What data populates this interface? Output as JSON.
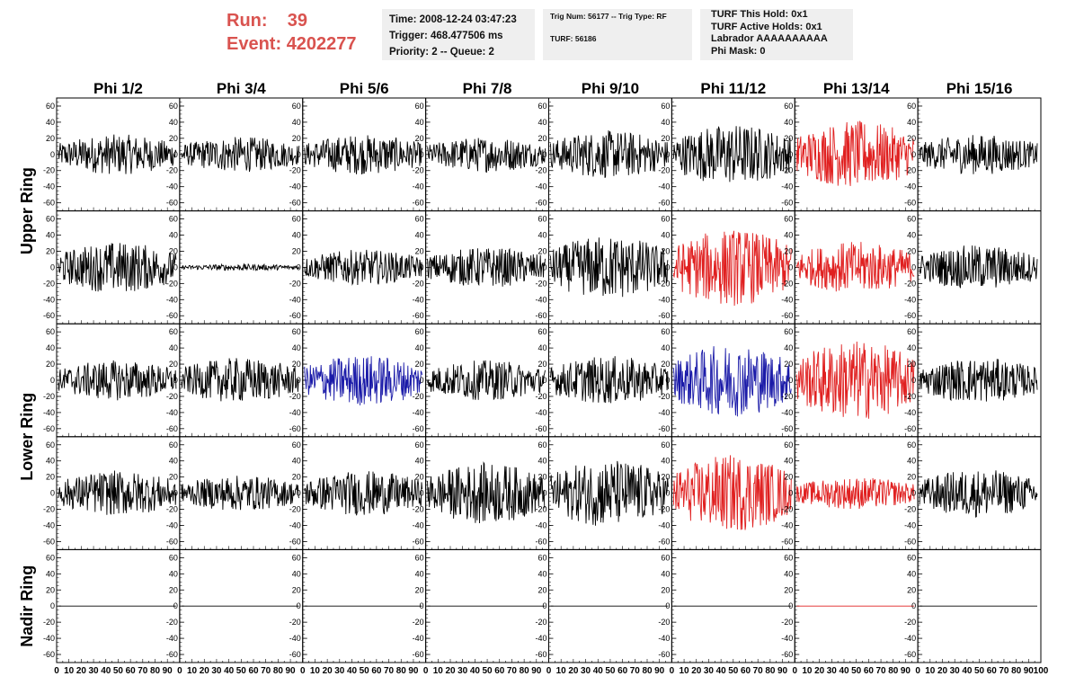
{
  "header": {
    "run_label": "Run:",
    "run_value": "39",
    "event_label": "Event:",
    "event_value": "4202277",
    "time": "Time: 2008-12-24 03:47:23",
    "trigger": "Trigger: 468.477506 ms",
    "priority": "Priority: 2 -- Queue: 2",
    "trig_num": "Trig Num: 56177 -- Trig Type: RF",
    "turf": "TURF: 56186",
    "turf_hold": "TURF This Hold: 0x1",
    "turf_active": "TURF Active Holds: 0x1",
    "labrador": "Labrador AAAAAAAAAA",
    "phi_mask": "Phi Mask: 0"
  },
  "colors": {
    "header_red": "#d9534f",
    "box_bg": "#efefef",
    "trace_black": "#000000",
    "trace_red": "#e02020",
    "trace_blue": "#1a1aa8"
  },
  "chart_data": {
    "type": "line",
    "columns": [
      "Phi 1/2",
      "Phi 3/4",
      "Phi 5/6",
      "Phi 7/8",
      "Phi 9/10",
      "Phi 11/12",
      "Phi 13/14",
      "Phi 15/16"
    ],
    "rows": [
      "Upper Ring",
      "Upper Ring",
      "Lower Ring",
      "Lower Ring",
      "Nadir Ring"
    ],
    "row_labels": [
      "Upper Ring",
      "Lower Ring",
      "Nadir Ring"
    ],
    "y_ticks": [
      60,
      40,
      20,
      0,
      -20,
      -40,
      -60
    ],
    "ylim": [
      -70,
      70
    ],
    "xlim": [
      0,
      100
    ],
    "x_ticks": [
      "0",
      "10",
      "20",
      "30",
      "40",
      "50",
      "60",
      "70",
      "80",
      "90",
      "100"
    ],
    "grid": false,
    "panels": [
      {
        "row": 0,
        "col": 0,
        "color": "black",
        "amplitude": 25
      },
      {
        "row": 0,
        "col": 1,
        "color": "black",
        "amplitude": 22
      },
      {
        "row": 0,
        "col": 2,
        "color": "black",
        "amplitude": 25
      },
      {
        "row": 0,
        "col": 3,
        "color": "black",
        "amplitude": 22
      },
      {
        "row": 0,
        "col": 4,
        "color": "black",
        "amplitude": 30
      },
      {
        "row": 0,
        "col": 5,
        "color": "black",
        "amplitude": 38
      },
      {
        "row": 0,
        "col": 6,
        "color": "red",
        "amplitude": 42
      },
      {
        "row": 0,
        "col": 7,
        "color": "black",
        "amplitude": 25
      },
      {
        "row": 1,
        "col": 0,
        "color": "black",
        "amplitude": 32
      },
      {
        "row": 1,
        "col": 1,
        "color": "black",
        "amplitude": 4
      },
      {
        "row": 1,
        "col": 2,
        "color": "black",
        "amplitude": 22
      },
      {
        "row": 1,
        "col": 3,
        "color": "black",
        "amplitude": 25
      },
      {
        "row": 1,
        "col": 4,
        "color": "black",
        "amplitude": 40
      },
      {
        "row": 1,
        "col": 5,
        "color": "red",
        "amplitude": 48
      },
      {
        "row": 1,
        "col": 6,
        "color": "red",
        "amplitude": 32
      },
      {
        "row": 1,
        "col": 7,
        "color": "black",
        "amplitude": 28
      },
      {
        "row": 2,
        "col": 0,
        "color": "black",
        "amplitude": 25
      },
      {
        "row": 2,
        "col": 1,
        "color": "black",
        "amplitude": 28
      },
      {
        "row": 2,
        "col": 2,
        "color": "blue",
        "amplitude": 32
      },
      {
        "row": 2,
        "col": 3,
        "color": "black",
        "amplitude": 25
      },
      {
        "row": 2,
        "col": 4,
        "color": "black",
        "amplitude": 30
      },
      {
        "row": 2,
        "col": 5,
        "color": "blue",
        "amplitude": 45
      },
      {
        "row": 2,
        "col": 6,
        "color": "red",
        "amplitude": 50
      },
      {
        "row": 2,
        "col": 7,
        "color": "black",
        "amplitude": 28
      },
      {
        "row": 3,
        "col": 0,
        "color": "black",
        "amplitude": 28
      },
      {
        "row": 3,
        "col": 1,
        "color": "black",
        "amplitude": 22
      },
      {
        "row": 3,
        "col": 2,
        "color": "black",
        "amplitude": 28
      },
      {
        "row": 3,
        "col": 3,
        "color": "black",
        "amplitude": 38
      },
      {
        "row": 3,
        "col": 4,
        "color": "black",
        "amplitude": 42
      },
      {
        "row": 3,
        "col": 5,
        "color": "red",
        "amplitude": 48
      },
      {
        "row": 3,
        "col": 6,
        "color": "red",
        "amplitude": 20
      },
      {
        "row": 3,
        "col": 7,
        "color": "black",
        "amplitude": 30
      },
      {
        "row": 4,
        "col": 0,
        "color": "black",
        "amplitude": 0
      },
      {
        "row": 4,
        "col": 1,
        "color": "black",
        "amplitude": 0
      },
      {
        "row": 4,
        "col": 2,
        "color": "black",
        "amplitude": 0
      },
      {
        "row": 4,
        "col": 3,
        "color": "black",
        "amplitude": 0
      },
      {
        "row": 4,
        "col": 4,
        "color": "black",
        "amplitude": 0
      },
      {
        "row": 4,
        "col": 5,
        "color": "black",
        "amplitude": 0
      },
      {
        "row": 4,
        "col": 6,
        "color": "red",
        "amplitude": 0
      },
      {
        "row": 4,
        "col": 7,
        "color": "black",
        "amplitude": 0
      }
    ]
  }
}
